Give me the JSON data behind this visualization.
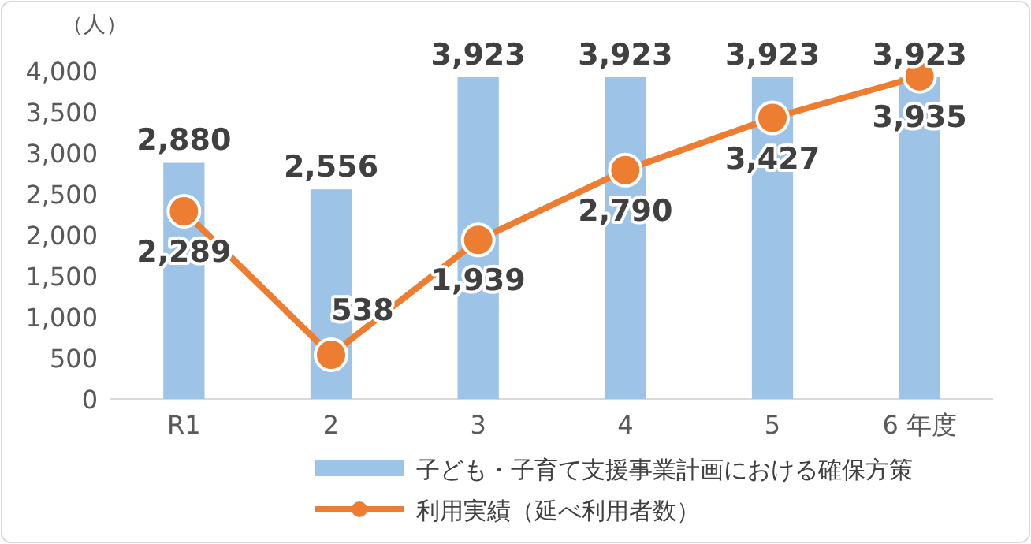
{
  "chart_data": {
    "type": "bar",
    "ylabel": "（人）",
    "categories": [
      "R1",
      "2",
      "3",
      "4",
      "5",
      "6 年度"
    ],
    "series": [
      {
        "name": "子ども・子育て支援事業計画における確保方策",
        "color": "#9dc3e6",
        "values": [
          2880,
          2556,
          3923,
          3923,
          3923,
          3923
        ],
        "value_labels": [
          "2,880",
          "2,556",
          "3,923",
          "3,923",
          "3,923",
          "3,923"
        ]
      },
      {
        "name": "利用実績（延べ利用者数）",
        "type": "line",
        "color": "#ed7d31",
        "marker": "circle",
        "values": [
          2289,
          538,
          1939,
          2790,
          3427,
          3935
        ],
        "value_labels": [
          "2,289",
          "538",
          "1,939",
          "2,790",
          "3,427",
          "3,935"
        ]
      }
    ],
    "ylim": [
      0,
      4000
    ],
    "yticks": [
      {
        "value": 0,
        "label": "0"
      },
      {
        "value": 500,
        "label": "500"
      },
      {
        "value": 1000,
        "label": "1,000"
      },
      {
        "value": 1500,
        "label": "1,500"
      },
      {
        "value": 2000,
        "label": "2,000"
      },
      {
        "value": 2500,
        "label": "2,500"
      },
      {
        "value": 3000,
        "label": "3,000"
      },
      {
        "value": 3500,
        "label": "3,500"
      },
      {
        "value": 4000,
        "label": "4,000"
      }
    ],
    "legend": "bottom",
    "grid": false
  }
}
